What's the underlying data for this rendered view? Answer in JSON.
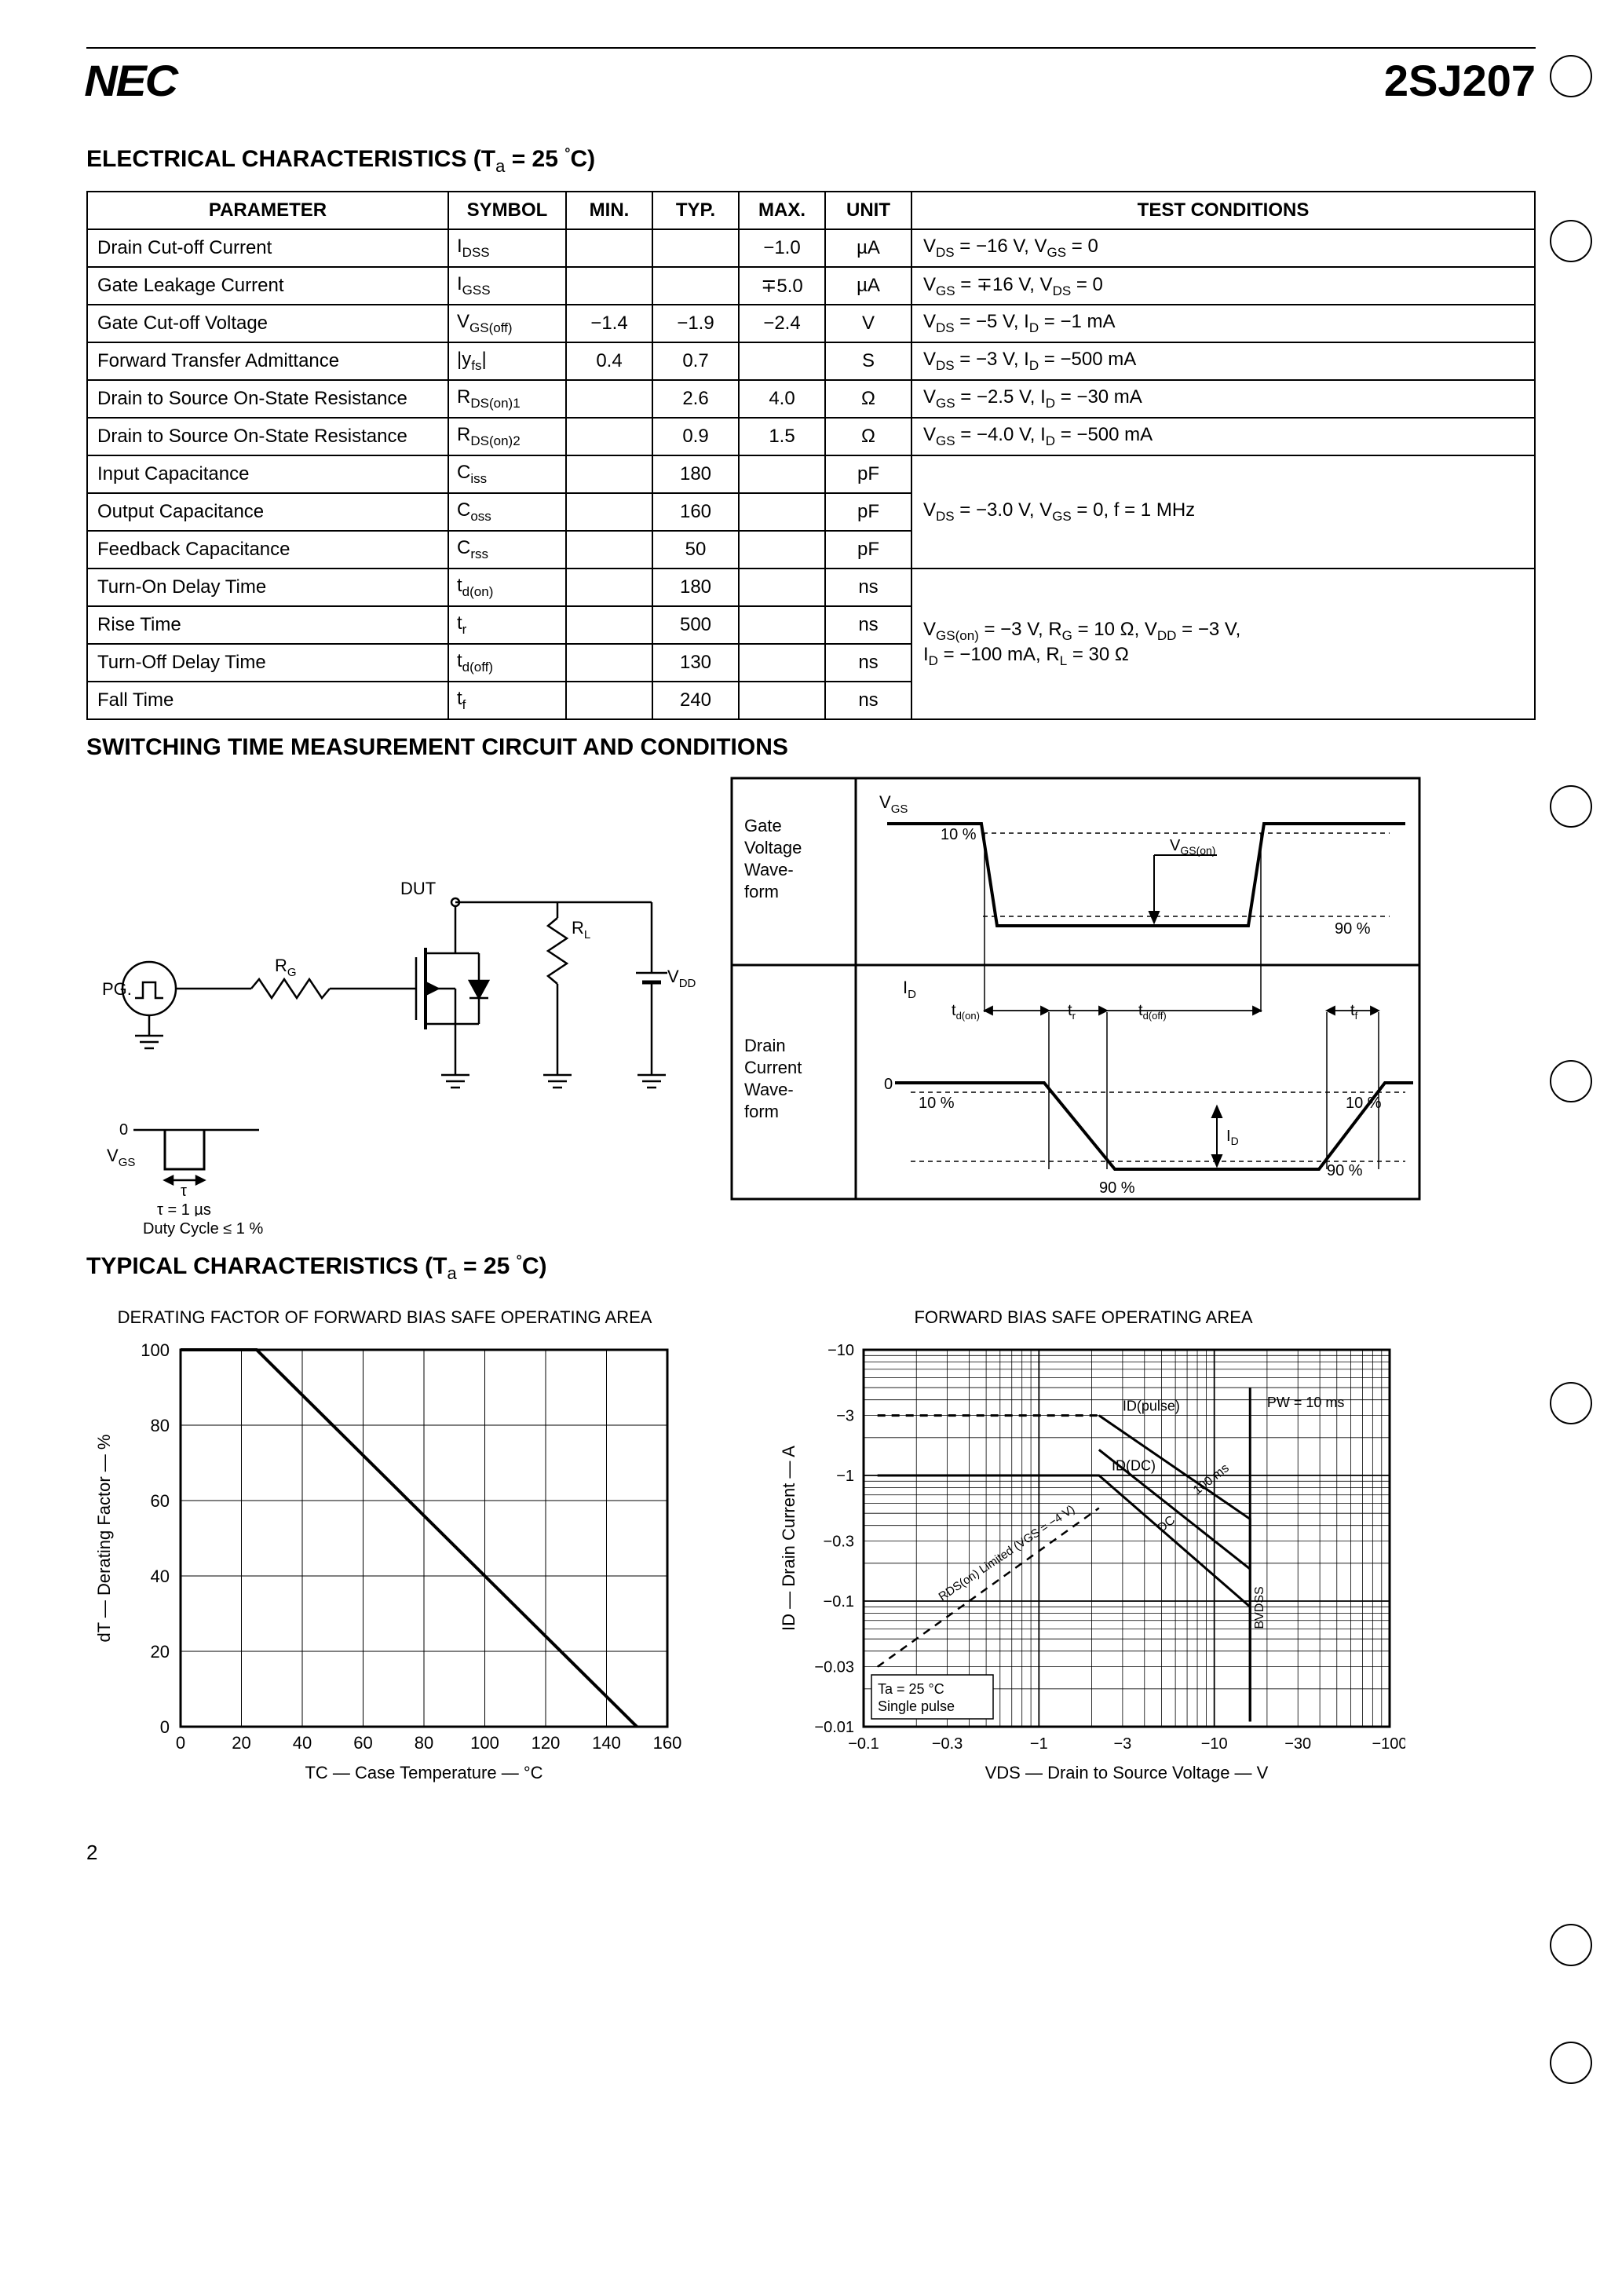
{
  "header": {
    "logo": "NEC",
    "part_number": "2SJ207"
  },
  "ec_section_title": "ELECTRICAL CHARACTERISTICS (Ta = 25 °C)",
  "ec_table": {
    "cols": [
      "PARAMETER",
      "SYMBOL",
      "MIN.",
      "TYP.",
      "MAX.",
      "UNIT",
      "TEST CONDITIONS"
    ],
    "cond_group_cap": "VDS = −3.0 V, VGS = 0, f = 1 MHz",
    "cond_group_sw": "VGS(on) = −3 V, RG = 10 Ω, VDD = −3 V, ID = −100 mA, RL = 30 Ω",
    "rows": [
      {
        "p": "Drain Cut-off Current",
        "s": "IDSS",
        "min": "",
        "typ": "",
        "max": "−1.0",
        "u": "µA",
        "c": "VDS = −16 V, VGS = 0"
      },
      {
        "p": "Gate Leakage Current",
        "s": "IGSS",
        "min": "",
        "typ": "",
        "max": "∓5.0",
        "u": "µA",
        "c": "VGS = ∓16 V, VDS = 0"
      },
      {
        "p": "Gate Cut-off Voltage",
        "s": "VGS(off)",
        "min": "−1.4",
        "typ": "−1.9",
        "max": "−2.4",
        "u": "V",
        "c": "VDS = −5 V, ID = −1 mA"
      },
      {
        "p": "Forward Transfer Admittance",
        "s": "|yfs|",
        "min": "0.4",
        "typ": "0.7",
        "max": "",
        "u": "S",
        "c": "VDS = −3 V, ID = −500 mA"
      },
      {
        "p": "Drain to Source On-State Resistance",
        "s": "RDS(on)1",
        "min": "",
        "typ": "2.6",
        "max": "4.0",
        "u": "Ω",
        "c": "VGS = −2.5 V, ID = −30 mA"
      },
      {
        "p": "Drain to Source On-State Resistance",
        "s": "RDS(on)2",
        "min": "",
        "typ": "0.9",
        "max": "1.5",
        "u": "Ω",
        "c": "VGS = −4.0 V, ID = −500 mA"
      },
      {
        "p": "Input Capacitance",
        "s": "Ciss",
        "min": "",
        "typ": "180",
        "max": "",
        "u": "pF"
      },
      {
        "p": "Output Capacitance",
        "s": "Coss",
        "min": "",
        "typ": "160",
        "max": "",
        "u": "pF"
      },
      {
        "p": "Feedback Capacitance",
        "s": "Crss",
        "min": "",
        "typ": "50",
        "max": "",
        "u": "pF"
      },
      {
        "p": "Turn-On Delay Time",
        "s": "td(on)",
        "min": "",
        "typ": "180",
        "max": "",
        "u": "ns"
      },
      {
        "p": "Rise Time",
        "s": "tr",
        "min": "",
        "typ": "500",
        "max": "",
        "u": "ns"
      },
      {
        "p": "Turn-Off Delay Time",
        "s": "td(off)",
        "min": "",
        "typ": "130",
        "max": "",
        "u": "ns"
      },
      {
        "p": "Fall Time",
        "s": "tf",
        "min": "",
        "typ": "240",
        "max": "",
        "u": "ns"
      }
    ]
  },
  "switching_title": "SWITCHING TIME MEASUREMENT CIRCUIT AND CONDITIONS",
  "circuit": {
    "labels": {
      "PG": "PG.",
      "RG": "RG",
      "DUT": "DUT",
      "RL": "RL",
      "VDD": "VDD",
      "zero": "0",
      "VGS": "VGS",
      "tau": "τ",
      "tau_eq": "τ = 1 µs",
      "duty": "Duty Cycle ≤ 1 %"
    }
  },
  "waveform": {
    "gate_label": "Gate Voltage Wave-form",
    "drain_label": "Drain Current Wave-form",
    "VGS": "VGS",
    "VGSon": "VGS(on)",
    "ID": "ID",
    "ten": "10 %",
    "ninety": "90 %",
    "tdon": "td(on)",
    "tr": "tr",
    "tdoff": "td(off)",
    "tf": "tf",
    "zero": "0"
  },
  "typical_title": "TYPICAL CHARACTERISTICS (Ta = 25 °C)",
  "chart_derating": {
    "title": "DERATING FACTOR OF FORWARD BIAS SAFE OPERATING AREA",
    "xlabel": "TC — Case Temperature — °C",
    "ylabel": "dT — Derating Factor — %",
    "xlim": [
      0,
      160
    ],
    "ylim": [
      0,
      100
    ],
    "xticks": [
      0,
      20,
      40,
      60,
      80,
      100,
      120,
      140,
      160
    ],
    "yticks": [
      0,
      20,
      40,
      60,
      80,
      100
    ],
    "grid_color": "#000000",
    "line": {
      "color": "#000000",
      "width": 4,
      "points": [
        [
          0,
          100
        ],
        [
          25,
          100
        ],
        [
          150,
          0
        ]
      ]
    }
  },
  "chart_soa": {
    "title": "FORWARD BIAS SAFE OPERATING AREA",
    "xlabel": "VDS — Drain to Source Voltage — V",
    "ylabel": "ID — Drain Current — A",
    "xticks": [
      "−0.1",
      "−0.3",
      "−1",
      "−3",
      "−10",
      "−30",
      "−100"
    ],
    "yticks": [
      "−0.01",
      "−0.03",
      "−0.1",
      "−0.3",
      "−1",
      "−3",
      "−10"
    ],
    "annot": {
      "ta": "Ta = 25 °C",
      "sp": "Single pulse",
      "rds": "RDS(on) Limited (VGS = −4 V)",
      "idpulse": "ID(pulse)",
      "iddc": "ID(DC)",
      "bvdss": "BVDSS",
      "pw10": "PW = 10 ms",
      "pw100": "100 ms",
      "dc": "DC"
    }
  },
  "page_number": "2"
}
